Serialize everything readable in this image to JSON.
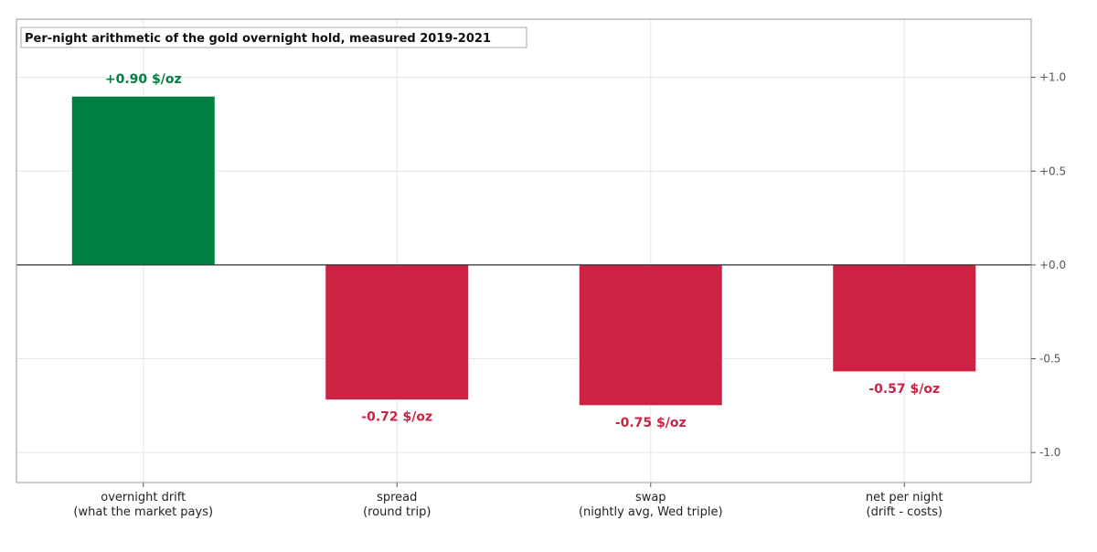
{
  "chart_data": {
    "type": "bar",
    "title": "Per-night arithmetic of the gold overnight hold, measured 2019-2021",
    "xlabel": "",
    "ylabel": "",
    "categories": [
      [
        "overnight drift",
        "(what the market pays)"
      ],
      [
        "spread",
        "(round trip)"
      ],
      [
        "swap",
        "(nightly avg, Wed triple)"
      ],
      [
        "net per night",
        "(drift - costs)"
      ]
    ],
    "values": [
      0.9,
      -0.72,
      -0.75,
      -0.57
    ],
    "data_labels": [
      "+0.90 $/oz",
      "-0.72 $/oz",
      "-0.75 $/oz",
      "-0.57 $/oz"
    ],
    "bar_colors": [
      "#008040",
      "#CC2244",
      "#CC2244",
      "#CC2244"
    ],
    "ylim": [
      -1.16,
      1.31
    ],
    "yticks": [
      1.0,
      0.5,
      0.0,
      -0.5,
      -1.0
    ],
    "ytick_labels": [
      "+1.0",
      "+0.5",
      "+0.0",
      "-0.5",
      "-1.0"
    ],
    "y_axis_side": "right",
    "grid": true,
    "zero_line": true,
    "title_placement": "top-left"
  }
}
